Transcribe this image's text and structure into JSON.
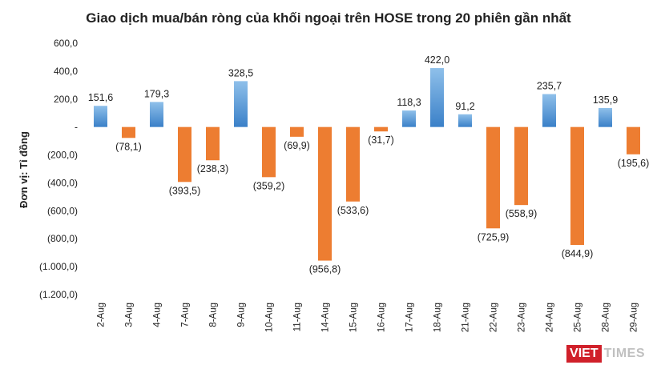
{
  "chart_data": {
    "type": "bar",
    "title": "Giao dịch mua/bán ròng của khối ngoại trên HOSE trong 20 phiên gần nhất",
    "ylabel": "Đơn vị: Tỉ đồng",
    "xlabel": "",
    "ylim": [
      -1200,
      600
    ],
    "yticks": [
      600,
      400,
      200,
      0,
      -200,
      -400,
      -600,
      -800,
      -1000,
      -1200
    ],
    "ytick_labels": [
      "600,0",
      "400,0",
      "200,0",
      "-",
      "(200,0)",
      "(400,0)",
      "(600,0)",
      "(800,0)",
      "(1.000,0)",
      "(1.200,0)"
    ],
    "categories": [
      "2-Aug",
      "3-Aug",
      "4-Aug",
      "7-Aug",
      "8-Aug",
      "9-Aug",
      "10-Aug",
      "11-Aug",
      "14-Aug",
      "15-Aug",
      "16-Aug",
      "17-Aug",
      "18-Aug",
      "21-Aug",
      "22-Aug",
      "23-Aug",
      "24-Aug",
      "25-Aug",
      "28-Aug",
      "29-Aug"
    ],
    "values": [
      151.6,
      -78.1,
      179.3,
      -393.5,
      -238.3,
      328.5,
      -359.2,
      -69.9,
      -956.8,
      -533.6,
      -31.7,
      118.3,
      422.0,
      91.2,
      -725.9,
      -558.9,
      235.7,
      -844.9,
      135.9,
      -195.6
    ],
    "value_labels": [
      "151,6",
      "(78,1)",
      "179,3",
      "(393,5)",
      "(238,3)",
      "328,5",
      "(359,2)",
      "(69,9)",
      "(956,8)",
      "(533,6)",
      "(31,7)",
      "118,3",
      "422,0",
      "91,2",
      "(725,9)",
      "(558,9)",
      "235,7",
      "(844,9)",
      "135,9",
      "(195,6)"
    ],
    "colors": {
      "positive_top": "#8fc0ea",
      "positive_bottom": "#3a80c8",
      "negative": "#ed7d31"
    },
    "grid": false,
    "legend": "none"
  },
  "watermark": {
    "part1": "VIET",
    "part2": "TIMES"
  }
}
